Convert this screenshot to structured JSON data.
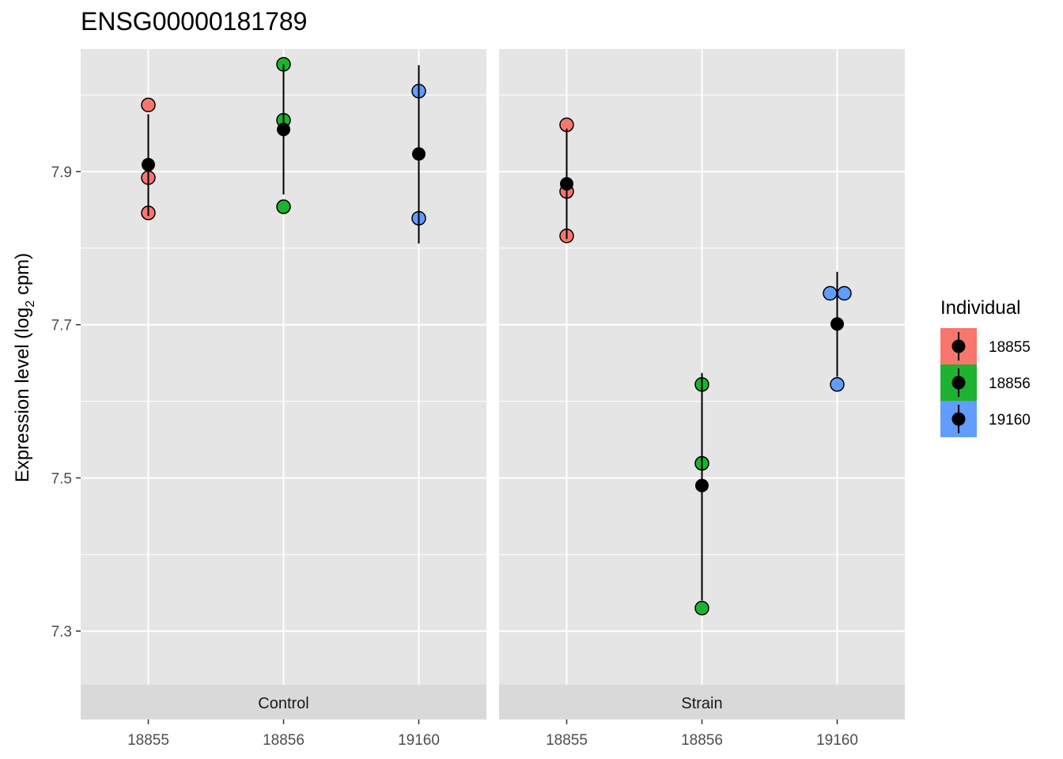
{
  "chart_data": {
    "type": "scatter",
    "title": "ENSG00000181789",
    "ylabel": {
      "pre": "Expression level (log",
      "sub": "2",
      "post": " cpm)"
    },
    "xlabel": "",
    "ylim": [
      7.23,
      8.06
    ],
    "y_ticks": [
      7.3,
      7.5,
      7.7,
      7.9
    ],
    "y_tick_labels": [
      "7.3",
      "7.5",
      "7.7",
      "7.9"
    ],
    "categories": [
      "18855",
      "18856",
      "19160"
    ],
    "grid": true,
    "legend": {
      "title": "Individual",
      "placement": "right",
      "items": [
        {
          "name": "18855",
          "color": "#F8766D"
        },
        {
          "name": "18856",
          "color": "#1DB330"
        },
        {
          "name": "19160",
          "color": "#619CFF"
        }
      ]
    },
    "panels": [
      {
        "strip": "Control",
        "points": [
          {
            "x": "18855",
            "y": 7.987,
            "series": "18855"
          },
          {
            "x": "18855",
            "y": 7.892,
            "series": "18855"
          },
          {
            "x": "18855",
            "y": 7.846,
            "series": "18855"
          },
          {
            "x": "18856",
            "y": 8.04,
            "series": "18856"
          },
          {
            "x": "18856",
            "y": 7.967,
            "series": "18856"
          },
          {
            "x": "18856",
            "y": 7.854,
            "series": "18856"
          },
          {
            "x": "19160",
            "y": 8.005,
            "series": "19160"
          },
          {
            "x": "19160",
            "y": 7.839,
            "series": "19160"
          }
        ],
        "summary": [
          {
            "x": "18855",
            "mean": 7.909,
            "lower": 7.842,
            "upper": 7.975
          },
          {
            "x": "18856",
            "mean": 7.955,
            "lower": 7.87,
            "upper": 8.04
          },
          {
            "x": "19160",
            "mean": 7.923,
            "lower": 7.806,
            "upper": 8.039
          }
        ]
      },
      {
        "strip": "Strain",
        "points": [
          {
            "x": "18855",
            "y": 7.961,
            "series": "18855"
          },
          {
            "x": "18855",
            "y": 7.874,
            "series": "18855"
          },
          {
            "x": "18855",
            "y": 7.816,
            "series": "18855"
          },
          {
            "x": "18856",
            "y": 7.622,
            "series": "18856"
          },
          {
            "x": "18856",
            "y": 7.519,
            "series": "18856"
          },
          {
            "x": "18856",
            "y": 7.33,
            "series": "18856"
          },
          {
            "x": "19160",
            "y": 7.741,
            "series": "19160",
            "dodge": -1
          },
          {
            "x": "19160",
            "y": 7.741,
            "series": "19160",
            "dodge": 1
          },
          {
            "x": "19160",
            "y": 7.622,
            "series": "19160"
          }
        ],
        "summary": [
          {
            "x": "18855",
            "mean": 7.884,
            "lower": 7.812,
            "upper": 7.956
          },
          {
            "x": "18856",
            "mean": 7.49,
            "lower": 7.34,
            "upper": 7.637
          },
          {
            "x": "19160",
            "mean": 7.701,
            "lower": 7.632,
            "upper": 7.769
          }
        ]
      }
    ]
  }
}
